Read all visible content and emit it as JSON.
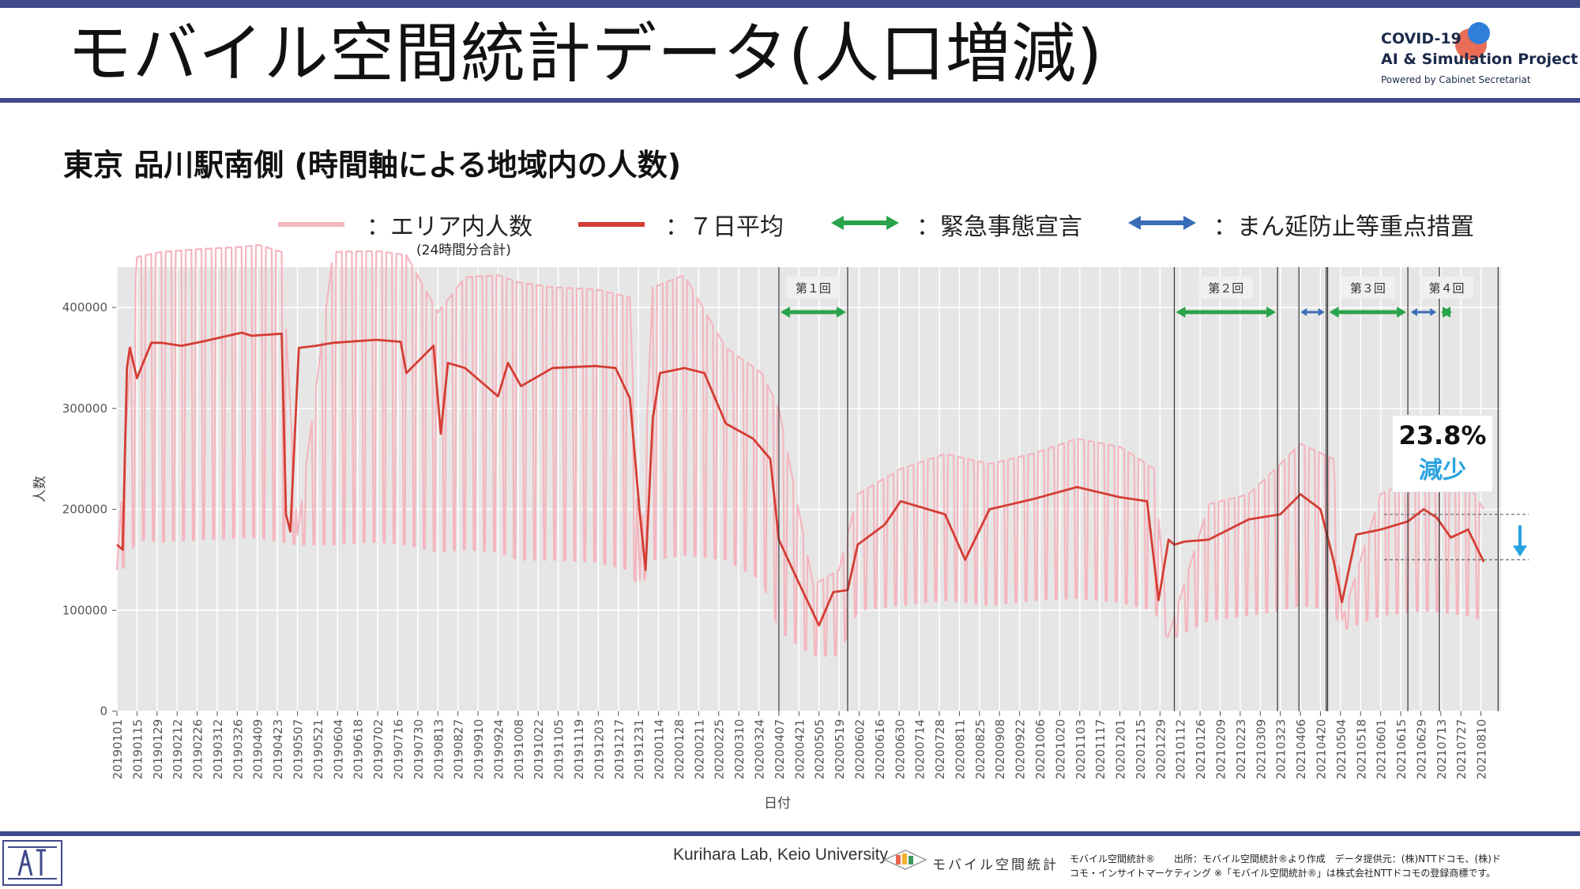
{
  "header": {
    "title": "モバイル空間統計データ(人口増減)",
    "logo_line1": "COVID-19",
    "logo_line2": "AI & Simulation Project",
    "logo_line3": "Powered by Cabinet Secretariat"
  },
  "subtitle": "東京 品川駅南側 (時間軸による地域内の人数)",
  "legend": {
    "raw_label": "：エリア内人数",
    "raw_sub": "(24時間分合計)",
    "avg_label": "：７日平均",
    "emergency_label": "：緊急事態宣言",
    "priority_label": "：まん延防止等重点措置"
  },
  "colors": {
    "raw": "#f4b6bf",
    "avg": "#d43d33",
    "emergency": "#2aa34a",
    "priority": "#3a6db8",
    "plot_bg": "#e6e6e6",
    "accent_blue": "#29a3df",
    "bar": "#3f4a8a"
  },
  "annotation": {
    "percent": "23.8%",
    "text": "減少"
  },
  "footer": {
    "lab": "Kurihara Lab, Keio University",
    "mobile_logo": "モバイル空間統計",
    "source_line1": "モバイル空間統計®　　出所：モバイル空間統計®より作成　データ提供元：(株)NTTドコモ、(株)ド",
    "source_line2": "コモ・インサイトマーケティング ※「モバイル空間統計®」は株式会社NTTドコモの登録商標です。"
  },
  "chart_data": {
    "type": "line",
    "title": "",
    "xlabel": "日付",
    "ylabel": "人数",
    "ylim": [
      0,
      440000
    ],
    "y_ticks": [
      0,
      100000,
      200000,
      300000,
      400000
    ],
    "y_tick_labels": [
      "0",
      "100000",
      "200000",
      "300000",
      "400000"
    ],
    "x_tick_labels": [
      "20190101",
      "20190115",
      "20190129",
      "20190212",
      "20190226",
      "20190312",
      "20190326",
      "20190409",
      "20190423",
      "20190507",
      "20190521",
      "20190604",
      "20190618",
      "20190702",
      "20190716",
      "20190730",
      "20190813",
      "20190827",
      "20190910",
      "20190924",
      "20191008",
      "20191022",
      "20191105",
      "20191119",
      "20191203",
      "20191217",
      "20191231",
      "20200114",
      "20200128",
      "20200211",
      "20200225",
      "20200310",
      "20200324",
      "20200407",
      "20200421",
      "20200505",
      "20200519",
      "20200602",
      "20200616",
      "20200630",
      "20200714",
      "20200728",
      "20200811",
      "20200825",
      "20200908",
      "20200922",
      "20201006",
      "20201020",
      "20201103",
      "20201117",
      "20201201",
      "20201215",
      "20201229",
      "20210112",
      "20210126",
      "20210209",
      "20210223",
      "20210309",
      "20210323",
      "20210406",
      "20210420",
      "20210504",
      "20210518",
      "20210601",
      "20210615",
      "20210629",
      "20210713",
      "20210727",
      "20210810"
    ],
    "grid": true,
    "legend_position": "top",
    "series": [
      {
        "name": "エリア内人数",
        "kind": "daily",
        "x": [
          "20190101",
          "20190115",
          "20190201",
          "20190301",
          "20190329",
          "20190410",
          "20190426",
          "20190507",
          "20190601",
          "20190701",
          "20190722",
          "20190813",
          "20190901",
          "20190924",
          "20191008",
          "20191101",
          "20191201",
          "20191225",
          "20200101",
          "20200110",
          "20200201",
          "20200301",
          "20200326",
          "20200407",
          "20200501",
          "20200519",
          "20200601",
          "20200701",
          "20200801",
          "20200901",
          "20201001",
          "20201101",
          "20201201",
          "20201225",
          "20210104",
          "20210201",
          "20210301",
          "20210323",
          "20210406",
          "20210429",
          "20210505",
          "20210601",
          "20210701",
          "20210801",
          "20210812"
        ],
        "weekday_peak": [
          140000,
          450000,
          455000,
          458000,
          460000,
          462000,
          455000,
          175000,
          455000,
          456000,
          452000,
          395000,
          430000,
          432000,
          425000,
          420000,
          418000,
          410000,
          130000,
          420000,
          432000,
          360000,
          335000,
          300000,
          125000,
          140000,
          215000,
          240000,
          255000,
          245000,
          255000,
          270000,
          262000,
          240000,
          75000,
          205000,
          215000,
          245000,
          265000,
          250000,
          90000,
          215000,
          235000,
          225000,
          200000
        ],
        "weekend_low": [
          130000,
          170000,
          168000,
          170000,
          172000,
          172000,
          168000,
          165000,
          165000,
          168000,
          165000,
          158000,
          160000,
          158000,
          150000,
          150000,
          148000,
          140000,
          120000,
          150000,
          155000,
          150000,
          130000,
          80000,
          55000,
          55000,
          100000,
          105000,
          110000,
          105000,
          110000,
          112000,
          108000,
          100000,
          70000,
          90000,
          95000,
          100000,
          105000,
          100000,
          80000,
          95000,
          100000,
          95000,
          90000
        ]
      },
      {
        "name": "７日平均",
        "kind": "rolling",
        "x": [
          "20190101",
          "20190105",
          "20190108",
          "20190110",
          "20190115",
          "20190125",
          "20190201",
          "20190215",
          "20190301",
          "20190329",
          "20190405",
          "20190426",
          "20190429",
          "20190502",
          "20190508",
          "20190520",
          "20190601",
          "20190701",
          "20190718",
          "20190722",
          "20190810",
          "20190815",
          "20190820",
          "20190901",
          "20190924",
          "20191001",
          "20191010",
          "20191101",
          "20191201",
          "20191215",
          "20191225",
          "20200101",
          "20200105",
          "20200110",
          "20200115",
          "20200201",
          "20200215",
          "20200301",
          "20200320",
          "20200401",
          "20200407",
          "20200420",
          "20200505",
          "20200515",
          "20200525",
          "20200601",
          "20200620",
          "20200701",
          "20200801",
          "20200815",
          "20200901",
          "20201001",
          "20201101",
          "20201201",
          "20201220",
          "20201228",
          "20210104",
          "20210108",
          "20210115",
          "20210201",
          "20210301",
          "20210323",
          "20210406",
          "20210420",
          "20210429",
          "20210505",
          "20210515",
          "20210601",
          "20210620",
          "20210701",
          "20210710",
          "20210720",
          "20210801",
          "20210812"
        ],
        "values": [
          165000,
          160000,
          340000,
          360000,
          330000,
          365000,
          365000,
          362000,
          366000,
          375000,
          372000,
          374000,
          195000,
          178000,
          360000,
          362000,
          365000,
          368000,
          366000,
          335000,
          362000,
          275000,
          345000,
          340000,
          312000,
          345000,
          322000,
          340000,
          342000,
          340000,
          310000,
          195000,
          140000,
          290000,
          335000,
          340000,
          335000,
          285000,
          270000,
          250000,
          170000,
          130000,
          85000,
          118000,
          120000,
          165000,
          185000,
          208000,
          195000,
          150000,
          200000,
          210000,
          222000,
          212000,
          208000,
          110000,
          170000,
          165000,
          168000,
          170000,
          190000,
          195000,
          215000,
          200000,
          150000,
          108000,
          175000,
          180000,
          188000,
          200000,
          192000,
          172000,
          180000,
          148000
        ]
      }
    ],
    "periods": [
      {
        "label": "第１回",
        "type": "emergency",
        "start": "20200407",
        "end": "20200525"
      },
      {
        "label": "第２回",
        "type": "emergency",
        "start": "20210108",
        "end": "20210321"
      },
      {
        "label": "",
        "type": "priority",
        "start": "20210405",
        "end": "20210424"
      },
      {
        "label": "第３回",
        "type": "emergency",
        "start": "20210425",
        "end": "20210620"
      },
      {
        "label": "",
        "type": "priority",
        "start": "20210621",
        "end": "20210711"
      },
      {
        "label": "第４回",
        "type": "emergency",
        "start": "20210712",
        "end": "20210822"
      }
    ],
    "reference_lines": [
      195000,
      150000
    ]
  }
}
